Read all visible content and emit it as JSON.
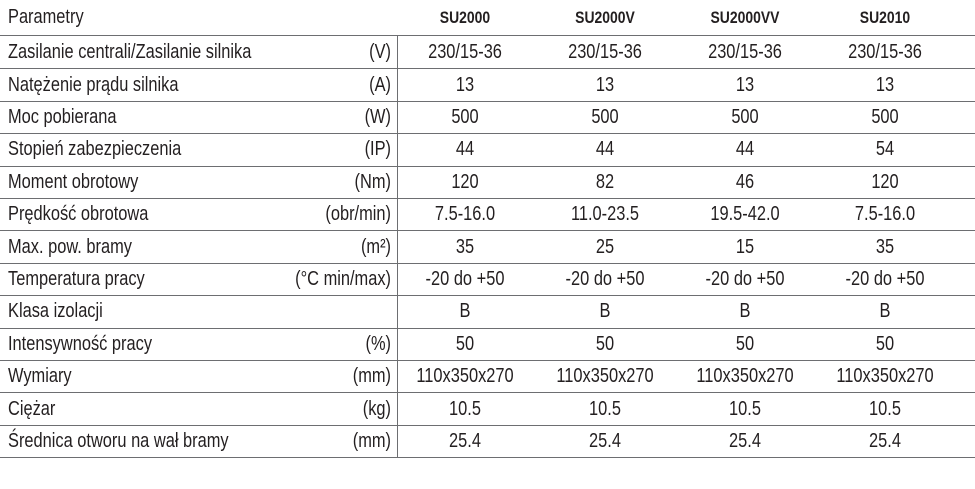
{
  "table": {
    "header": {
      "title": "Parametry",
      "models": [
        "SU2000",
        "SU2000V",
        "SU2000VV",
        "SU2010"
      ]
    },
    "rows": [
      {
        "label": "Zasilanie centrali/Zasilanie silnika",
        "unit": "(V)",
        "values": [
          "230/15-36",
          "230/15-36",
          "230/15-36",
          "230/15-36"
        ]
      },
      {
        "label": "Natężenie prądu silnika",
        "unit": "(A)",
        "values": [
          "13",
          "13",
          "13",
          "13"
        ]
      },
      {
        "label": "Moc pobierana",
        "unit": "(W)",
        "values": [
          "500",
          "500",
          "500",
          "500"
        ]
      },
      {
        "label": "Stopień zabezpieczenia",
        "unit": "(IP)",
        "values": [
          "44",
          "44",
          "44",
          "54"
        ]
      },
      {
        "label": "Moment obrotowy",
        "unit": "(Nm)",
        "values": [
          "120",
          "82",
          "46",
          "120"
        ]
      },
      {
        "label": "Prędkość obrotowa",
        "unit": "(obr/min)",
        "values": [
          "7.5-16.0",
          "11.0-23.5",
          "19.5-42.0",
          "7.5-16.0"
        ]
      },
      {
        "label": "Max. pow. bramy",
        "unit": "(m²)",
        "values": [
          "35",
          "25",
          "15",
          "35"
        ]
      },
      {
        "label": "Temperatura pracy",
        "unit": "(°C min/max)",
        "values": [
          "-20 do +50",
          "-20 do +50",
          "-20 do +50",
          "-20 do +50"
        ]
      },
      {
        "label": "Klasa izolacji",
        "unit": "",
        "values": [
          "B",
          "B",
          "B",
          "B"
        ]
      },
      {
        "label": "Intensywność pracy",
        "unit": "(%)",
        "values": [
          "50",
          "50",
          "50",
          "50"
        ]
      },
      {
        "label": "Wymiary",
        "unit": "(mm)",
        "values": [
          "110x350x270",
          "110x350x270",
          "110x350x270",
          "110x350x270"
        ]
      },
      {
        "label": "Ciężar",
        "unit": "(kg)",
        "values": [
          "10.5",
          "10.5",
          "10.5",
          "10.5"
        ]
      },
      {
        "label": "Średnica otworu na wał bramy",
        "unit": "(mm)",
        "values": [
          "25.4",
          "25.4",
          "25.4",
          "25.4"
        ]
      }
    ]
  }
}
